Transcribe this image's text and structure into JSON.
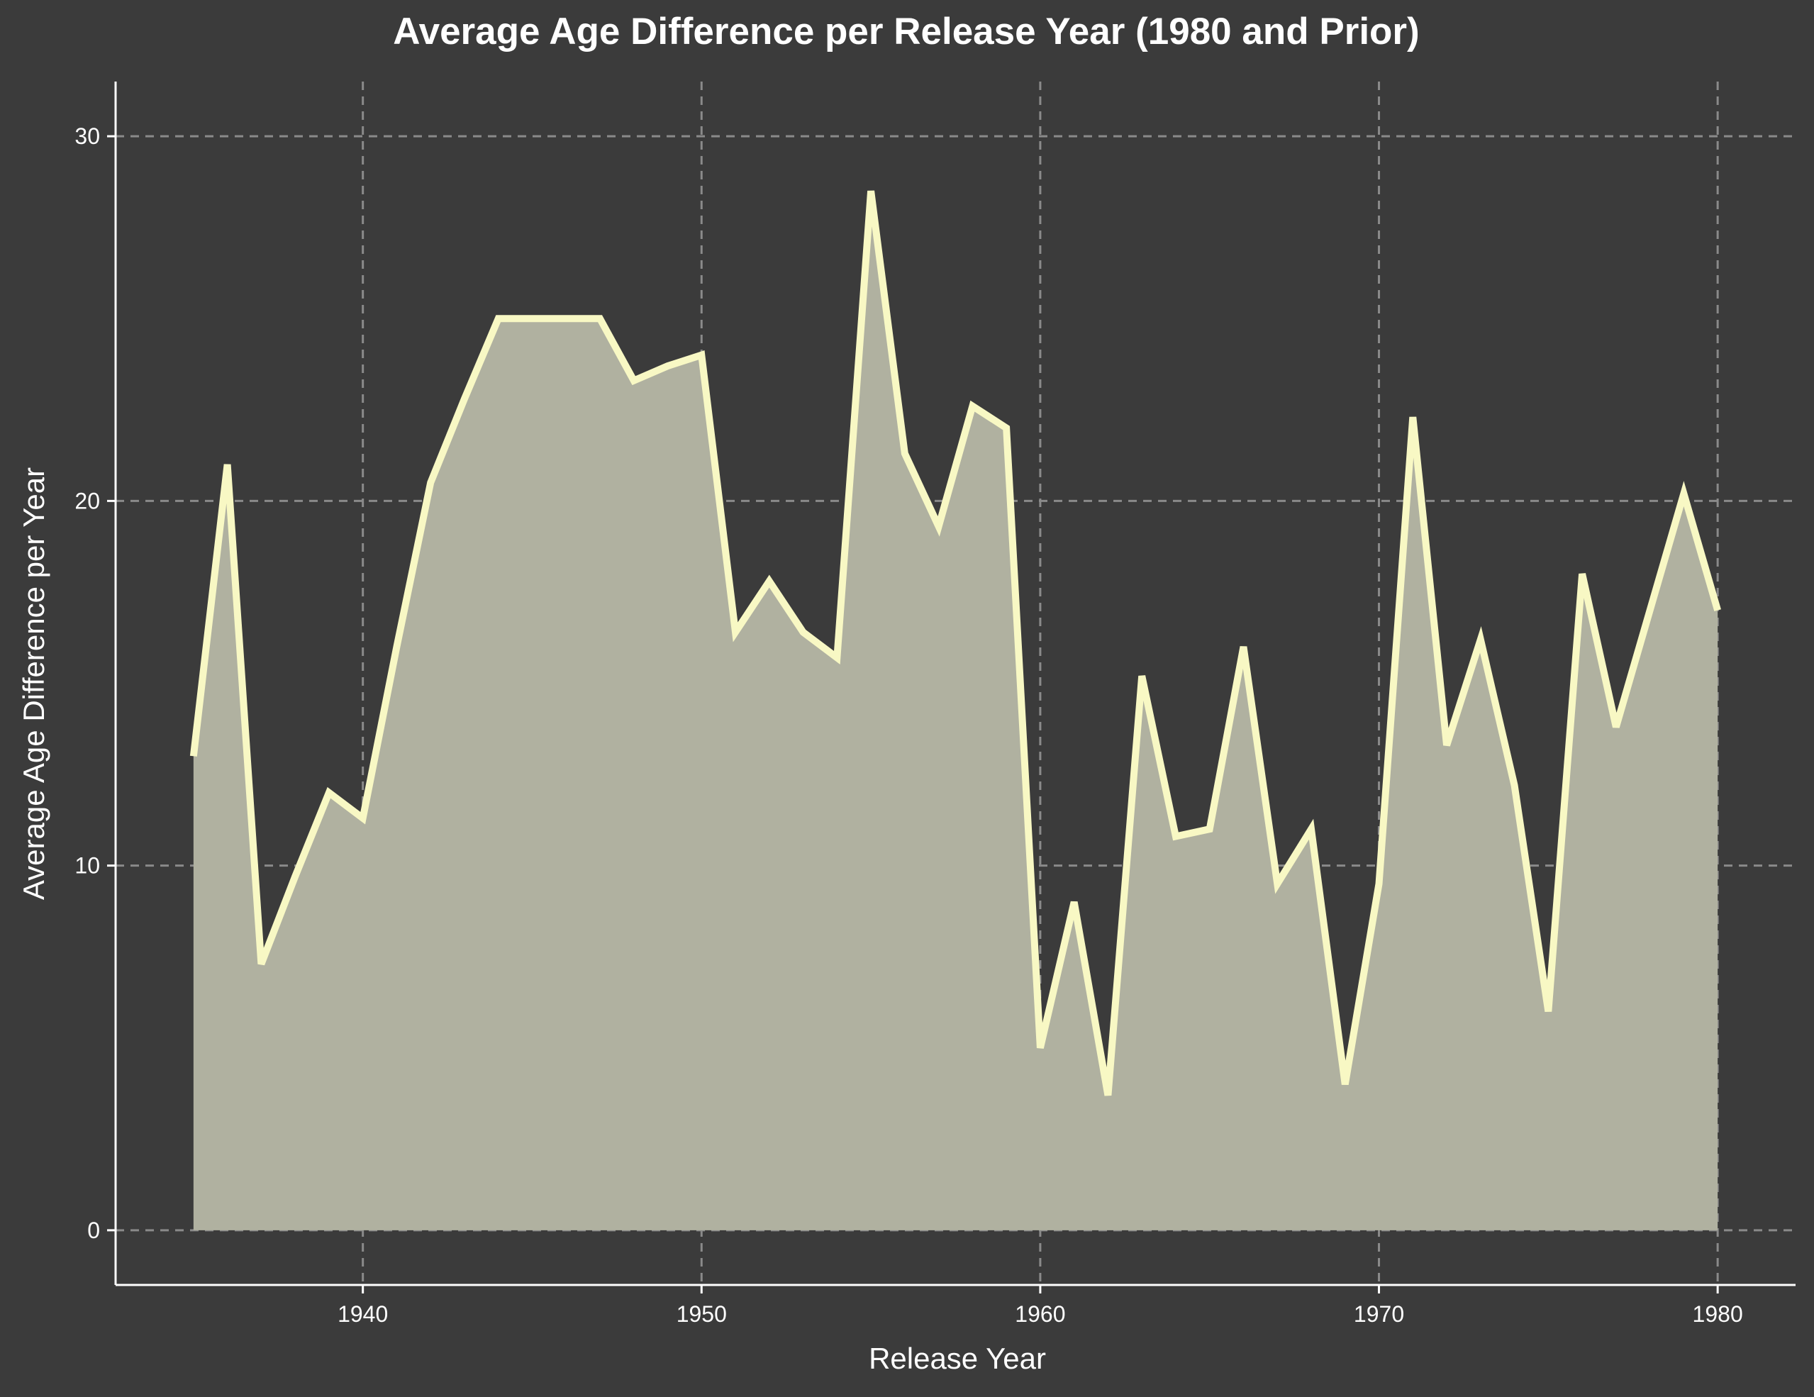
{
  "colors": {
    "background": "#3b3b3b",
    "line": "#f8f8c4",
    "fill": "#b0b1a0",
    "grid": "#8a8a8a",
    "axis": "#ffffff",
    "text": "#ffffff"
  },
  "chart_data": {
    "type": "area",
    "title": "Average Age Difference per Release Year (1980 and Prior)",
    "xlabel": "Release Year",
    "ylabel": "Average Age Difference per Year",
    "xlim": [
      1932.7,
      1982.3
    ],
    "ylim": [
      -1.5,
      31.5
    ],
    "xticks": [
      1940,
      1950,
      1960,
      1970,
      1980
    ],
    "yticks": [
      0,
      10,
      20,
      30
    ],
    "grid": true,
    "grid_style": "dashed",
    "x": [
      1935,
      1936,
      1937,
      1938,
      1939,
      1940,
      1941,
      1942,
      1943,
      1944,
      1945,
      1946,
      1947,
      1948,
      1949,
      1950,
      1951,
      1952,
      1953,
      1954,
      1955,
      1956,
      1957,
      1958,
      1959,
      1960,
      1961,
      1962,
      1963,
      1964,
      1965,
      1966,
      1967,
      1968,
      1969,
      1970,
      1971,
      1972,
      1973,
      1974,
      1975,
      1976,
      1977,
      1978,
      1979,
      1980
    ],
    "y": [
      13.0,
      21.0,
      7.3,
      9.7,
      12.0,
      11.3,
      16.0,
      20.5,
      22.8,
      25.0,
      25.0,
      25.0,
      25.0,
      23.3,
      23.7,
      24.0,
      16.4,
      17.8,
      16.4,
      15.7,
      28.5,
      21.3,
      19.3,
      22.6,
      22.0,
      5.0,
      9.0,
      3.7,
      15.2,
      10.8,
      11.0,
      16.0,
      9.5,
      11.0,
      4.0,
      9.5,
      22.3,
      13.3,
      16.2,
      12.2,
      6.0,
      18.0,
      13.8,
      17.0,
      20.2,
      17.0
    ]
  }
}
